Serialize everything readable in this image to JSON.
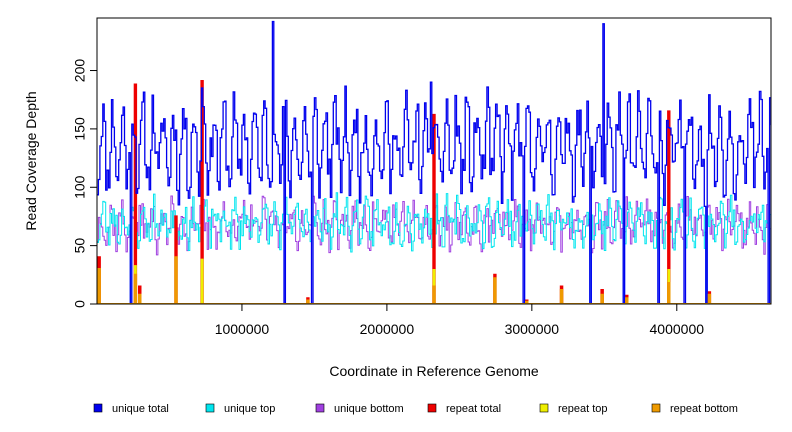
{
  "chart_data": {
    "type": "line",
    "title": "",
    "xlabel": "Coordinate in Reference Genome",
    "ylabel": "Read Coverage Depth",
    "xlim": [
      0,
      4650000
    ],
    "ylim": [
      0,
      245
    ],
    "x_ticks": [
      1000000,
      2000000,
      3000000,
      4000000
    ],
    "x_tick_labels": [
      "1000000",
      "2000000",
      "3000000",
      "4000000"
    ],
    "y_ticks": [
      0,
      50,
      100,
      150,
      200
    ],
    "y_tick_labels": [
      "0",
      "50",
      "100",
      "150",
      "200"
    ],
    "grid": false,
    "legend_position": "bottom",
    "sample_step": 10000,
    "colors": {
      "unique_total": "#0000ee",
      "unique_top": "#00e5ee",
      "unique_bottom": "#a040e0",
      "repeat_total": "#ee0000",
      "repeat_top": "#eeee00",
      "repeat_bottom": "#ee9a00"
    },
    "series": [
      {
        "name": "unique total",
        "key": "unique_total",
        "color": "#0000ee",
        "baseline": 135,
        "amplitude": 30,
        "noise": 22,
        "seed": 11
      },
      {
        "name": "unique top",
        "key": "unique_top",
        "color": "#00e5ee",
        "baseline": 70,
        "amplitude": 12,
        "noise": 14,
        "seed": 23
      },
      {
        "name": "unique bottom",
        "key": "unique_bottom",
        "color": "#a040e0",
        "baseline": 68,
        "amplitude": 12,
        "noise": 14,
        "seed": 37
      },
      {
        "name": "repeat total",
        "key": "repeat_total",
        "color": "#ee0000"
      },
      {
        "name": "repeat top",
        "key": "repeat_top",
        "color": "#eeee00"
      },
      {
        "name": "repeat bottom",
        "key": "repeat_bottom",
        "color": "#ee9a00"
      }
    ],
    "dropouts": [
      230000,
      1290000,
      1480000,
      2940000,
      3400000,
      3630000,
      3870000,
      4050000,
      4200000,
      4630000
    ],
    "peaks_unique_total": [
      {
        "x": 1210000,
        "y": 242
      },
      {
        "x": 3490000,
        "y": 240
      },
      {
        "x": 720000,
        "y": 185
      },
      {
        "x": 2300000,
        "y": 190
      }
    ],
    "repeat_spikes": [
      {
        "x": 10000,
        "total": 40,
        "bottom": 30
      },
      {
        "x": 255000,
        "total": 188,
        "bottom": 25
      },
      {
        "x": 285000,
        "total": 15,
        "bottom": 8
      },
      {
        "x": 535000,
        "total": 75,
        "bottom": 40
      },
      {
        "x": 720000,
        "total": 191,
        "bottom": 0
      },
      {
        "x": 1450000,
        "total": 5,
        "bottom": 3
      },
      {
        "x": 2320000,
        "total": 162,
        "bottom": 15
      },
      {
        "x": 2740000,
        "total": 25,
        "bottom": 22
      },
      {
        "x": 2960000,
        "total": 3,
        "bottom": 2
      },
      {
        "x": 3200000,
        "total": 15,
        "bottom": 12
      },
      {
        "x": 3480000,
        "total": 12,
        "bottom": 8
      },
      {
        "x": 3650000,
        "total": 7,
        "bottom": 5
      },
      {
        "x": 3940000,
        "total": 165,
        "bottom": 18
      },
      {
        "x": 4220000,
        "total": 10,
        "bottom": 8
      }
    ]
  }
}
